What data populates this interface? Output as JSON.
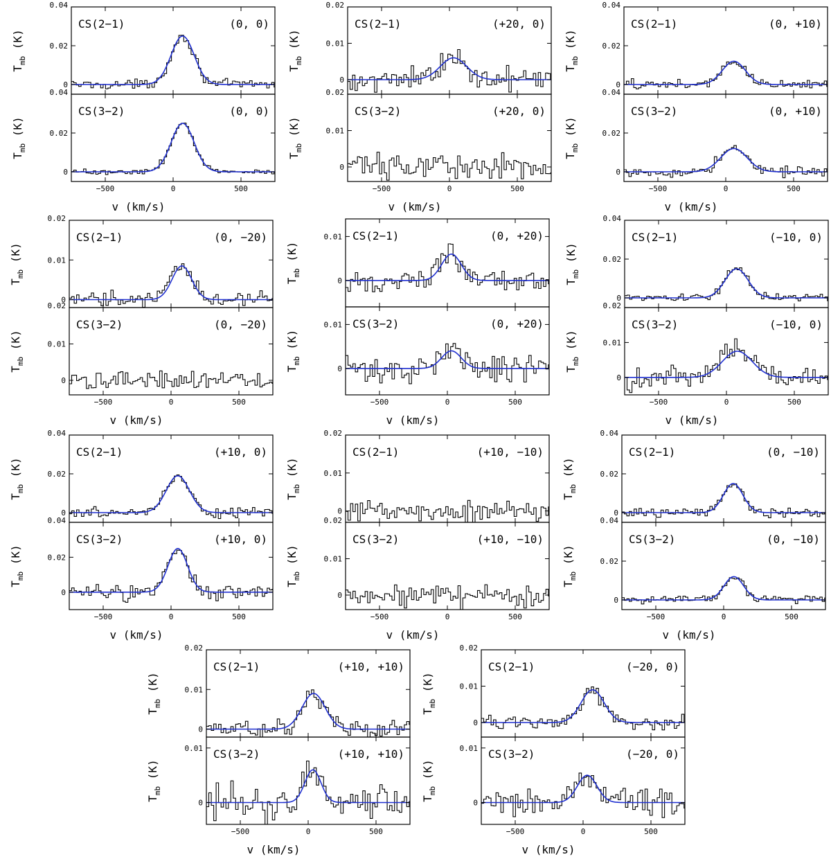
{
  "chart_data": {
    "type": "line",
    "line_labels": [
      "CS(2−1)",
      "CS(3−2)"
    ],
    "xlabel": "v (km/s)",
    "ylabel_main": "T",
    "ylabel_sub": "mb",
    "ylabel_unit": "(K)",
    "xlim": [
      -750,
      750
    ],
    "xticks": [
      -500,
      0,
      500
    ],
    "fit_color": "#1f2fd0",
    "data_color": "#000000",
    "offsets": [
      {
        "label": "(0, 0)",
        "panels": [
          {
            "ylim": [
              -0.005,
              0.04
            ],
            "yticks": [
              0,
              0.02,
              0.04
            ],
            "fit": {
              "amp": 0.025,
              "center": 70,
              "fwhm": 200
            },
            "noise": 0.0012
          },
          {
            "ylim": [
              -0.005,
              0.04
            ],
            "yticks": [
              0,
              0.02,
              0.04
            ],
            "fit": {
              "amp": 0.025,
              "center": 70,
              "fwhm": 200
            },
            "noise": 0.0008
          }
        ]
      },
      {
        "label": "(+20, 0)",
        "panels": [
          {
            "ylim": [
              -0.004,
              0.02
            ],
            "yticks": [
              0,
              0.01,
              0.02
            ],
            "fit": {
              "amp": 0.006,
              "center": 30,
              "fwhm": 230
            },
            "noise": 0.0014
          },
          {
            "ylim": [
              -0.004,
              0.02
            ],
            "yticks": [
              0,
              0.01,
              0.02
            ],
            "fit": null,
            "noise": 0.0018
          }
        ]
      },
      {
        "label": "(0, +10)",
        "panels": [
          {
            "ylim": [
              -0.005,
              0.04
            ],
            "yticks": [
              0,
              0.02,
              0.04
            ],
            "fit": {
              "amp": 0.012,
              "center": 60,
              "fwhm": 200
            },
            "noise": 0.0012
          },
          {
            "ylim": [
              -0.005,
              0.04
            ],
            "yticks": [
              0,
              0.02,
              0.04
            ],
            "fit": {
              "amp": 0.012,
              "center": 60,
              "fwhm": 230
            },
            "noise": 0.0012
          }
        ]
      },
      {
        "label": "(0, −20)",
        "panels": [
          {
            "ylim": [
              -0.002,
              0.02
            ],
            "yticks": [
              0,
              0.01,
              0.02
            ],
            "fit": {
              "amp": 0.0085,
              "center": 80,
              "fwhm": 170
            },
            "noise": 0.001
          },
          {
            "ylim": [
              -0.004,
              0.02
            ],
            "yticks": [
              0,
              0.01,
              0.02
            ],
            "fit": null,
            "noise": 0.0013
          }
        ]
      },
      {
        "label": "(0, +20)",
        "panels": [
          {
            "ylim": [
              -0.006,
              0.014
            ],
            "yticks": [
              0,
              0.01
            ],
            "fit": {
              "amp": 0.006,
              "center": 30,
              "fwhm": 170
            },
            "noise": 0.0013
          },
          {
            "ylim": [
              -0.006,
              0.014
            ],
            "yticks": [
              0,
              0.01
            ],
            "fit": {
              "amp": 0.004,
              "center": 30,
              "fwhm": 170
            },
            "noise": 0.0018
          }
        ]
      },
      {
        "label": "(−10, 0)",
        "panels": [
          {
            "ylim": [
              -0.005,
              0.04
            ],
            "yticks": [
              0,
              0.02,
              0.04
            ],
            "fit": {
              "amp": 0.015,
              "center": 75,
              "fwhm": 200
            },
            "noise": 0.001
          },
          {
            "ylim": [
              -0.005,
              0.02
            ],
            "yticks": [
              0,
              0.01,
              0.02
            ],
            "fit": {
              "amp": 0.0075,
              "center": 80,
              "fwhm": 260
            },
            "noise": 0.0016
          }
        ]
      },
      {
        "label": "(+10, 0)",
        "panels": [
          {
            "ylim": [
              -0.005,
              0.04
            ],
            "yticks": [
              0,
              0.02,
              0.04
            ],
            "fit": {
              "amp": 0.019,
              "center": 50,
              "fwhm": 200
            },
            "noise": 0.0012
          },
          {
            "ylim": [
              -0.01,
              0.04
            ],
            "yticks": [
              0,
              0.02,
              0.04
            ],
            "fit": {
              "amp": 0.025,
              "center": 50,
              "fwhm": 170
            },
            "noise": 0.0022
          }
        ]
      },
      {
        "label": "(+10, −10)",
        "panels": [
          {
            "ylim": [
              -0.003,
              0.02
            ],
            "yticks": [
              0,
              0.01,
              0.02
            ],
            "fit": null,
            "noise": 0.0013
          },
          {
            "ylim": [
              -0.004,
              0.02
            ],
            "yticks": [
              0,
              0.01,
              0.02
            ],
            "fit": null,
            "noise": 0.0018
          }
        ]
      },
      {
        "label": "(0, −10)",
        "panels": [
          {
            "ylim": [
              -0.005,
              0.04
            ],
            "yticks": [
              0,
              0.02,
              0.04
            ],
            "fit": {
              "amp": 0.015,
              "center": 70,
              "fwhm": 170
            },
            "noise": 0.0012
          },
          {
            "ylim": [
              -0.005,
              0.04
            ],
            "yticks": [
              0,
              0.02,
              0.04
            ],
            "fit": {
              "amp": 0.012,
              "center": 75,
              "fwhm": 170
            },
            "noise": 0.001
          }
        ]
      },
      {
        "label": "(+10, +10)",
        "panels": [
          {
            "ylim": [
              -0.002,
              0.02
            ],
            "yticks": [
              0,
              0.01,
              0.02
            ],
            "fit": {
              "amp": 0.009,
              "center": 40,
              "fwhm": 200
            },
            "noise": 0.0011
          },
          {
            "ylim": [
              -0.004,
              0.012
            ],
            "yticks": [
              0,
              0.01
            ],
            "fit": {
              "amp": 0.006,
              "center": 35,
              "fwhm": 140
            },
            "noise": 0.0016
          }
        ]
      },
      {
        "label": "(−20, 0)",
        "panels": [
          {
            "ylim": [
              -0.004,
              0.02
            ],
            "yticks": [
              0,
              0.01,
              0.02
            ],
            "fit": {
              "amp": 0.009,
              "center": 70,
              "fwhm": 200
            },
            "noise": 0.0011
          },
          {
            "ylim": [
              -0.004,
              0.012
            ],
            "yticks": [
              0,
              0.01
            ],
            "fit": {
              "amp": 0.005,
              "center": 30,
              "fwhm": 170
            },
            "noise": 0.0014
          }
        ]
      }
    ]
  }
}
